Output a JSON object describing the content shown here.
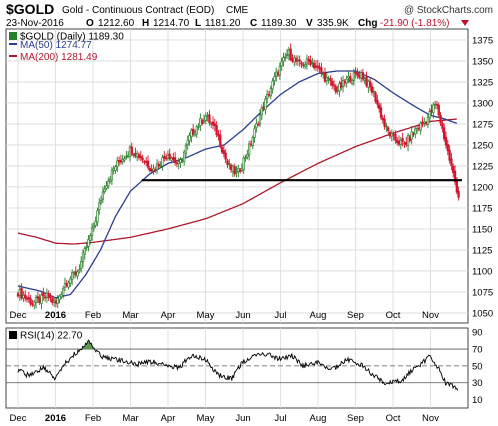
{
  "header": {
    "symbol": "$GOLD",
    "description": "Gold - Continuous Contract (EOD)",
    "exchange": "CME",
    "watermark": "@ StockCharts.com",
    "date": "23-Nov-2016",
    "open_label": "O",
    "open": "1212.60",
    "high_label": "H",
    "high": "1214.70",
    "low_label": "L",
    "low": "1181.20",
    "close_label": "C",
    "close": "1189.30",
    "volume_label": "V",
    "volume": "335.9K",
    "change_label": "Chg",
    "change": "-21.90 (-1.81%)"
  },
  "legend": {
    "price": "$GOLD (Daily) 1189.30",
    "ma50": "MA(50) 1274.77",
    "ma200": "MA(200) 1281.49",
    "rsi": "RSI(14) 22.70"
  },
  "colors": {
    "up_bar": "#2a7d2a",
    "down_bar": "#d2142c",
    "ma50": "#2b3d8f",
    "ma200": "#b0162e",
    "support": "#000000",
    "rsi_line": "#000000",
    "rsi_fill": "#5f9b4f",
    "grid": "#d9d9d9",
    "change_text": "#c0102a"
  },
  "chart_data": [
    {
      "type": "candlestick",
      "title": "$GOLD (Daily)",
      "x_labels": [
        "Dec",
        "2016",
        "Feb",
        "Mar",
        "Apr",
        "May",
        "Jun",
        "Jul",
        "Aug",
        "Sep",
        "Oct",
        "Nov"
      ],
      "y_ticks": [
        1050,
        1075,
        1100,
        1125,
        1150,
        1175,
        1200,
        1225,
        1250,
        1275,
        1300,
        1325,
        1350,
        1375
      ],
      "ylim": [
        1038,
        1388
      ],
      "grid": true,
      "close_path_months": [
        0,
        0.4,
        0.8,
        1.0,
        1.25,
        1.6,
        2.0,
        2.3,
        2.6,
        3.0,
        3.3,
        3.6,
        4.0,
        4.3,
        4.6,
        5.0,
        5.3,
        5.6,
        5.85,
        6.15,
        6.45,
        6.85,
        7.2,
        7.5,
        7.8,
        8.1,
        8.5,
        8.85,
        9.15,
        9.5,
        9.8,
        10.0,
        10.3,
        10.6,
        10.9,
        11.15,
        11.55,
        11.75
      ],
      "close_path_values": [
        1075,
        1062,
        1070,
        1060,
        1085,
        1100,
        1150,
        1200,
        1225,
        1245,
        1235,
        1220,
        1240,
        1225,
        1262,
        1285,
        1265,
        1225,
        1215,
        1245,
        1285,
        1330,
        1360,
        1345,
        1350,
        1335,
        1315,
        1330,
        1335,
        1310,
        1270,
        1258,
        1250,
        1268,
        1280,
        1300,
        1225,
        1189
      ],
      "ma50_months": [
        0,
        0.6,
        1.0,
        1.4,
        1.8,
        2.2,
        2.6,
        3.0,
        3.5,
        4.0,
        4.5,
        5.0,
        5.5,
        6.0,
        6.5,
        7.0,
        7.5,
        8.0,
        8.5,
        9.0,
        9.5,
        10.0,
        10.5,
        11.0,
        11.3,
        11.75
      ],
      "ma50_values": [
        1082,
        1076,
        1068,
        1072,
        1095,
        1125,
        1165,
        1195,
        1215,
        1228,
        1235,
        1245,
        1250,
        1268,
        1290,
        1310,
        1325,
        1335,
        1338,
        1338,
        1328,
        1312,
        1298,
        1285,
        1282,
        1275
      ],
      "ma200_months": [
        0,
        0.5,
        1.0,
        1.5,
        2.0,
        3.0,
        4.0,
        5.0,
        6.0,
        7.0,
        8.0,
        9.0,
        10.0,
        11.0,
        11.75
      ],
      "ma200_values": [
        1145,
        1140,
        1133,
        1132,
        1134,
        1140,
        1150,
        1162,
        1180,
        1205,
        1228,
        1248,
        1264,
        1278,
        1281
      ],
      "support_level": 1208,
      "support_from_month": 3.3
    },
    {
      "type": "line",
      "title": "RSI(14)",
      "y_ticks": [
        10,
        30,
        50,
        70,
        90
      ],
      "ylim": [
        0,
        95
      ],
      "reference_lines": [
        30,
        50,
        70
      ],
      "path_months": [
        0,
        0.3,
        0.7,
        1.0,
        1.3,
        1.6,
        1.9,
        2.2,
        2.5,
        2.8,
        3.2,
        3.6,
        4.0,
        4.3,
        4.6,
        5.0,
        5.3,
        5.7,
        6.0,
        6.3,
        6.6,
        7.0,
        7.3,
        7.6,
        8.0,
        8.4,
        8.8,
        9.2,
        9.5,
        9.8,
        10.2,
        10.5,
        10.8,
        11.0,
        11.2,
        11.4,
        11.75
      ],
      "path_values": [
        45,
        38,
        48,
        35,
        55,
        68,
        80,
        62,
        58,
        56,
        52,
        55,
        50,
        48,
        62,
        58,
        40,
        35,
        55,
        62,
        64,
        58,
        62,
        50,
        54,
        46,
        58,
        50,
        38,
        30,
        32,
        44,
        54,
        62,
        48,
        30,
        22.7
      ]
    }
  ]
}
